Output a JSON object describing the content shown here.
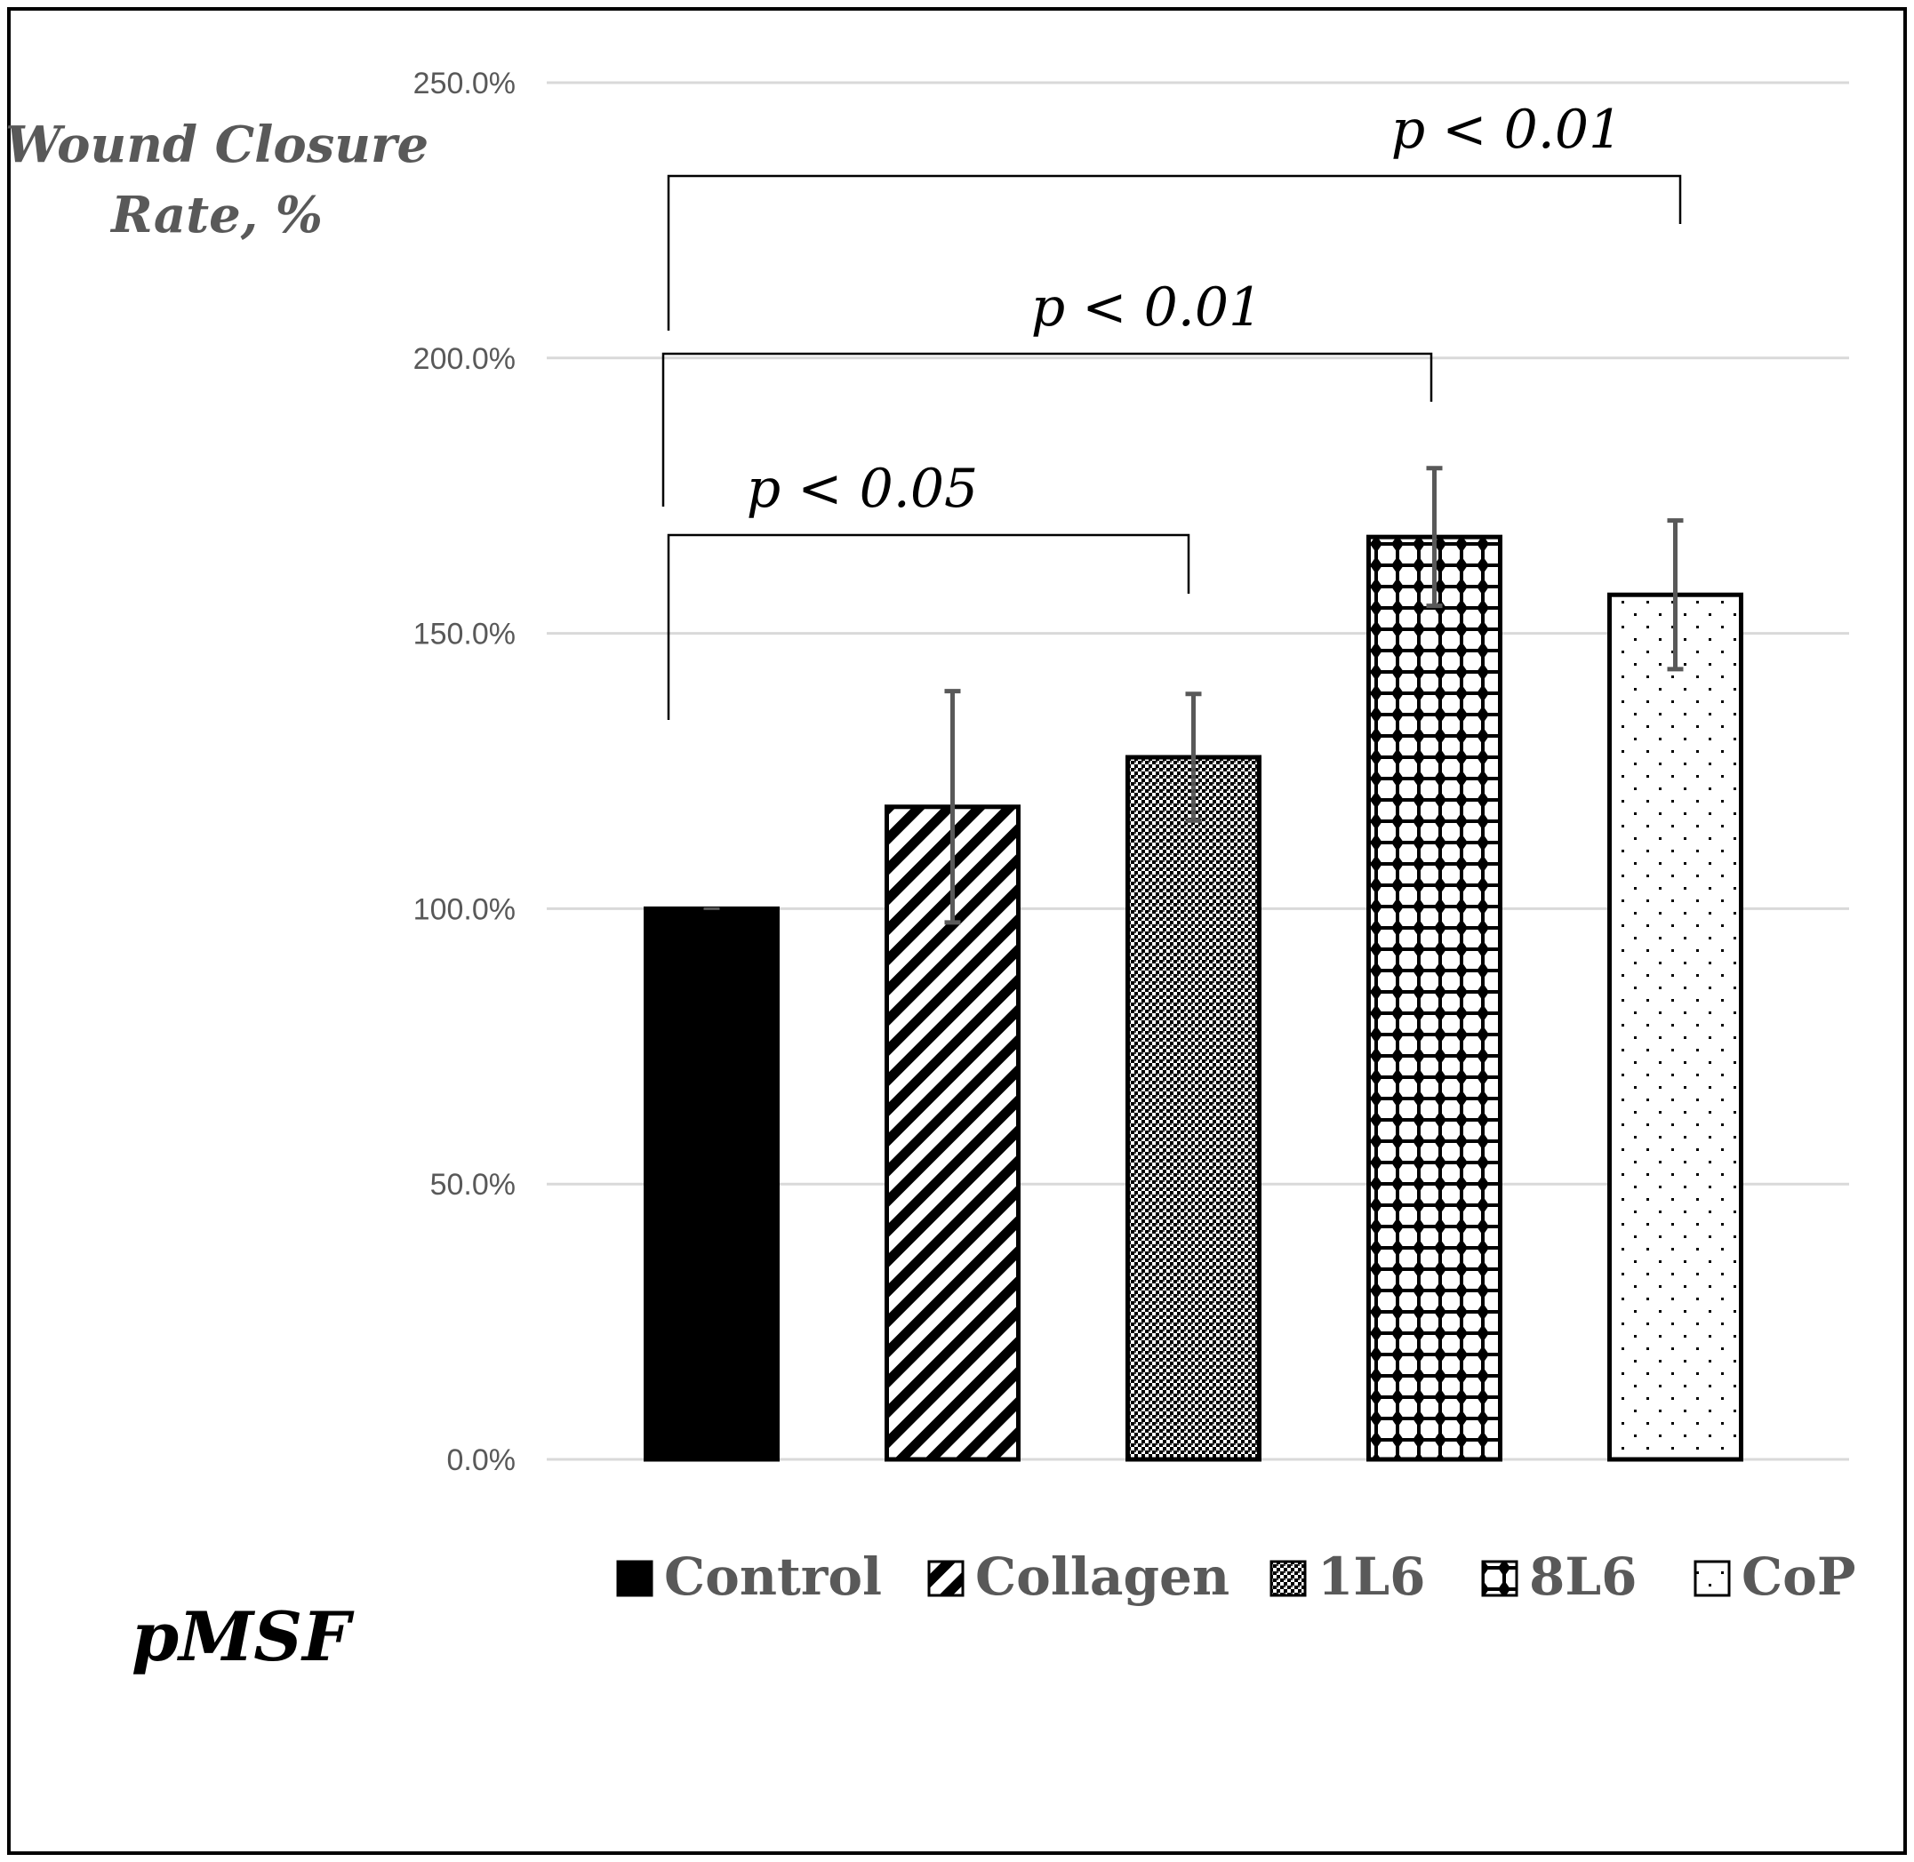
{
  "chart_data": {
    "type": "bar",
    "ylabel_lines": [
      "Wound Closure",
      "Rate, %"
    ],
    "panel_label": "pMSF",
    "ylim": [
      0,
      250
    ],
    "yticks": [
      0,
      50,
      100,
      150,
      200,
      250
    ],
    "ytick_labels": [
      "0.0%",
      "50.0%",
      "100.0%",
      "150.0%",
      "200.0%",
      "250.0%"
    ],
    "grid": true,
    "legend_position": "bottom",
    "categories": [
      "Control",
      "Collagen",
      "1L6",
      "8L6",
      "CoP"
    ],
    "values": [
      100,
      118.5,
      127.5,
      167.5,
      157
    ],
    "errors": [
      0,
      21,
      11.5,
      12.5,
      13.5
    ],
    "patterns": [
      "solid-black",
      "diagonal-stripes",
      "fine-checker",
      "diamond-grid",
      "sparse-dots"
    ],
    "significance": [
      {
        "label": "p < 0.05",
        "from": 0,
        "to": 2
      },
      {
        "label": "p < 0.01",
        "from": 0,
        "to": 3
      },
      {
        "label": "p < 0.01",
        "from": 0,
        "to": 4
      }
    ],
    "colors": {
      "bar_outline": "#000000",
      "grid": "#d9d9d9",
      "error": "#595959",
      "text": "#595959"
    }
  }
}
